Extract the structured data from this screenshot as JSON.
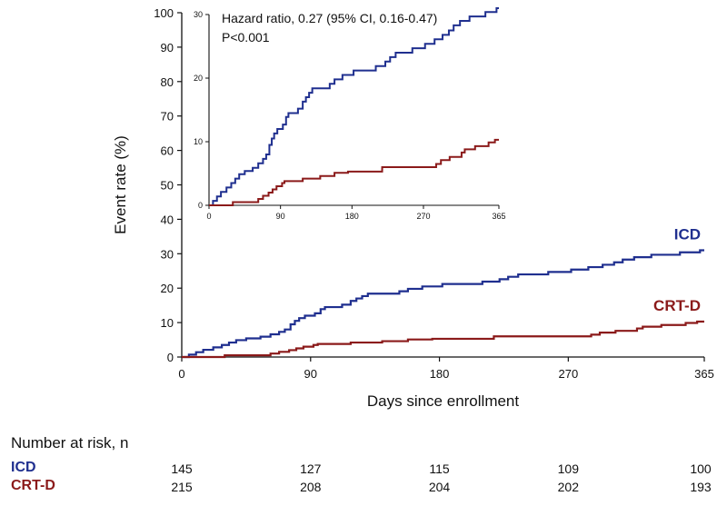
{
  "chart_data": [
    {
      "type": "line",
      "ylabel": "Event rate (%)",
      "xlabel": "Days since enrollment",
      "xlim": [
        0,
        365
      ],
      "ylim": [
        0,
        100
      ],
      "xticks": [
        "0",
        "90",
        "180",
        "270",
        "365"
      ],
      "yticks": [
        "0",
        "10",
        "20",
        "30",
        "40",
        "50",
        "60",
        "70",
        "80",
        "90",
        "100"
      ],
      "step": true,
      "series": [
        {
          "name": "ICD",
          "color": "#1f2f8f",
          "points": [
            [
              0,
              0
            ],
            [
              5,
              0.7
            ],
            [
              10,
              1.4
            ],
            [
              15,
              2.1
            ],
            [
              22,
              2.8
            ],
            [
              28,
              3.5
            ],
            [
              33,
              4.2
            ],
            [
              38,
              4.9
            ],
            [
              45,
              5.4
            ],
            [
              55,
              5.9
            ],
            [
              62,
              6.6
            ],
            [
              68,
              7.3
            ],
            [
              72,
              8
            ],
            [
              76,
              9.5
            ],
            [
              79,
              10.5
            ],
            [
              82,
              11.3
            ],
            [
              86,
              12
            ],
            [
              93,
              12.7
            ],
            [
              97,
              13.9
            ],
            [
              100,
              14.5
            ],
            [
              112,
              15.2
            ],
            [
              118,
              16.3
            ],
            [
              122,
              17
            ],
            [
              126,
              17.7
            ],
            [
              130,
              18.4
            ],
            [
              152,
              19.1
            ],
            [
              158,
              19.8
            ],
            [
              168,
              20.5
            ],
            [
              182,
              21.2
            ],
            [
              210,
              21.9
            ],
            [
              222,
              22.6
            ],
            [
              228,
              23.3
            ],
            [
              235,
              24
            ],
            [
              256,
              24.7
            ],
            [
              272,
              25.4
            ],
            [
              284,
              26.1
            ],
            [
              294,
              26.8
            ],
            [
              302,
              27.5
            ],
            [
              308,
              28.3
            ],
            [
              316,
              29
            ],
            [
              328,
              29.7
            ],
            [
              348,
              30.4
            ],
            [
              362,
              31
            ],
            [
              365,
              31
            ]
          ]
        },
        {
          "name": "CRT-D",
          "color": "#8b1a1a",
          "points": [
            [
              0,
              0
            ],
            [
              30,
              0.5
            ],
            [
              62,
              1
            ],
            [
              68,
              1.5
            ],
            [
              75,
              2
            ],
            [
              80,
              2.5
            ],
            [
              85,
              3
            ],
            [
              92,
              3.5
            ],
            [
              95,
              3.8
            ],
            [
              118,
              4.2
            ],
            [
              140,
              4.6
            ],
            [
              158,
              5.1
            ],
            [
              175,
              5.3
            ],
            [
              218,
              6
            ],
            [
              286,
              6.5
            ],
            [
              292,
              7.1
            ],
            [
              303,
              7.6
            ],
            [
              318,
              8.3
            ],
            [
              322,
              8.8
            ],
            [
              335,
              9.3
            ],
            [
              352,
              9.9
            ],
            [
              360,
              10.3
            ],
            [
              365,
              10.3
            ]
          ]
        }
      ],
      "annotations": [
        "ICD",
        "CRT-D"
      ]
    },
    {
      "type": "line",
      "inset": true,
      "xlim": [
        0,
        365
      ],
      "ylim": [
        0,
        30
      ],
      "xticks": [
        "0",
        "90",
        "180",
        "270",
        "365"
      ],
      "yticks": [
        "0",
        "10",
        "20",
        "30"
      ],
      "series_ref": [
        "ICD",
        "CRT-D"
      ],
      "annotations": [
        "Hazard ratio, 0.27 (95% CI, 0.16-0.47)",
        "P<0.001"
      ]
    }
  ],
  "risk_table": {
    "title": "Number at risk, n",
    "columns": [
      "0",
      "90",
      "180",
      "270",
      "365"
    ],
    "rows": [
      {
        "label": "ICD",
        "color": "#1f2f8f",
        "values": [
          "145",
          "127",
          "115",
          "109",
          "100"
        ]
      },
      {
        "label": "CRT-D",
        "color": "#8b1a1a",
        "values": [
          "215",
          "208",
          "204",
          "202",
          "193"
        ]
      }
    ]
  }
}
